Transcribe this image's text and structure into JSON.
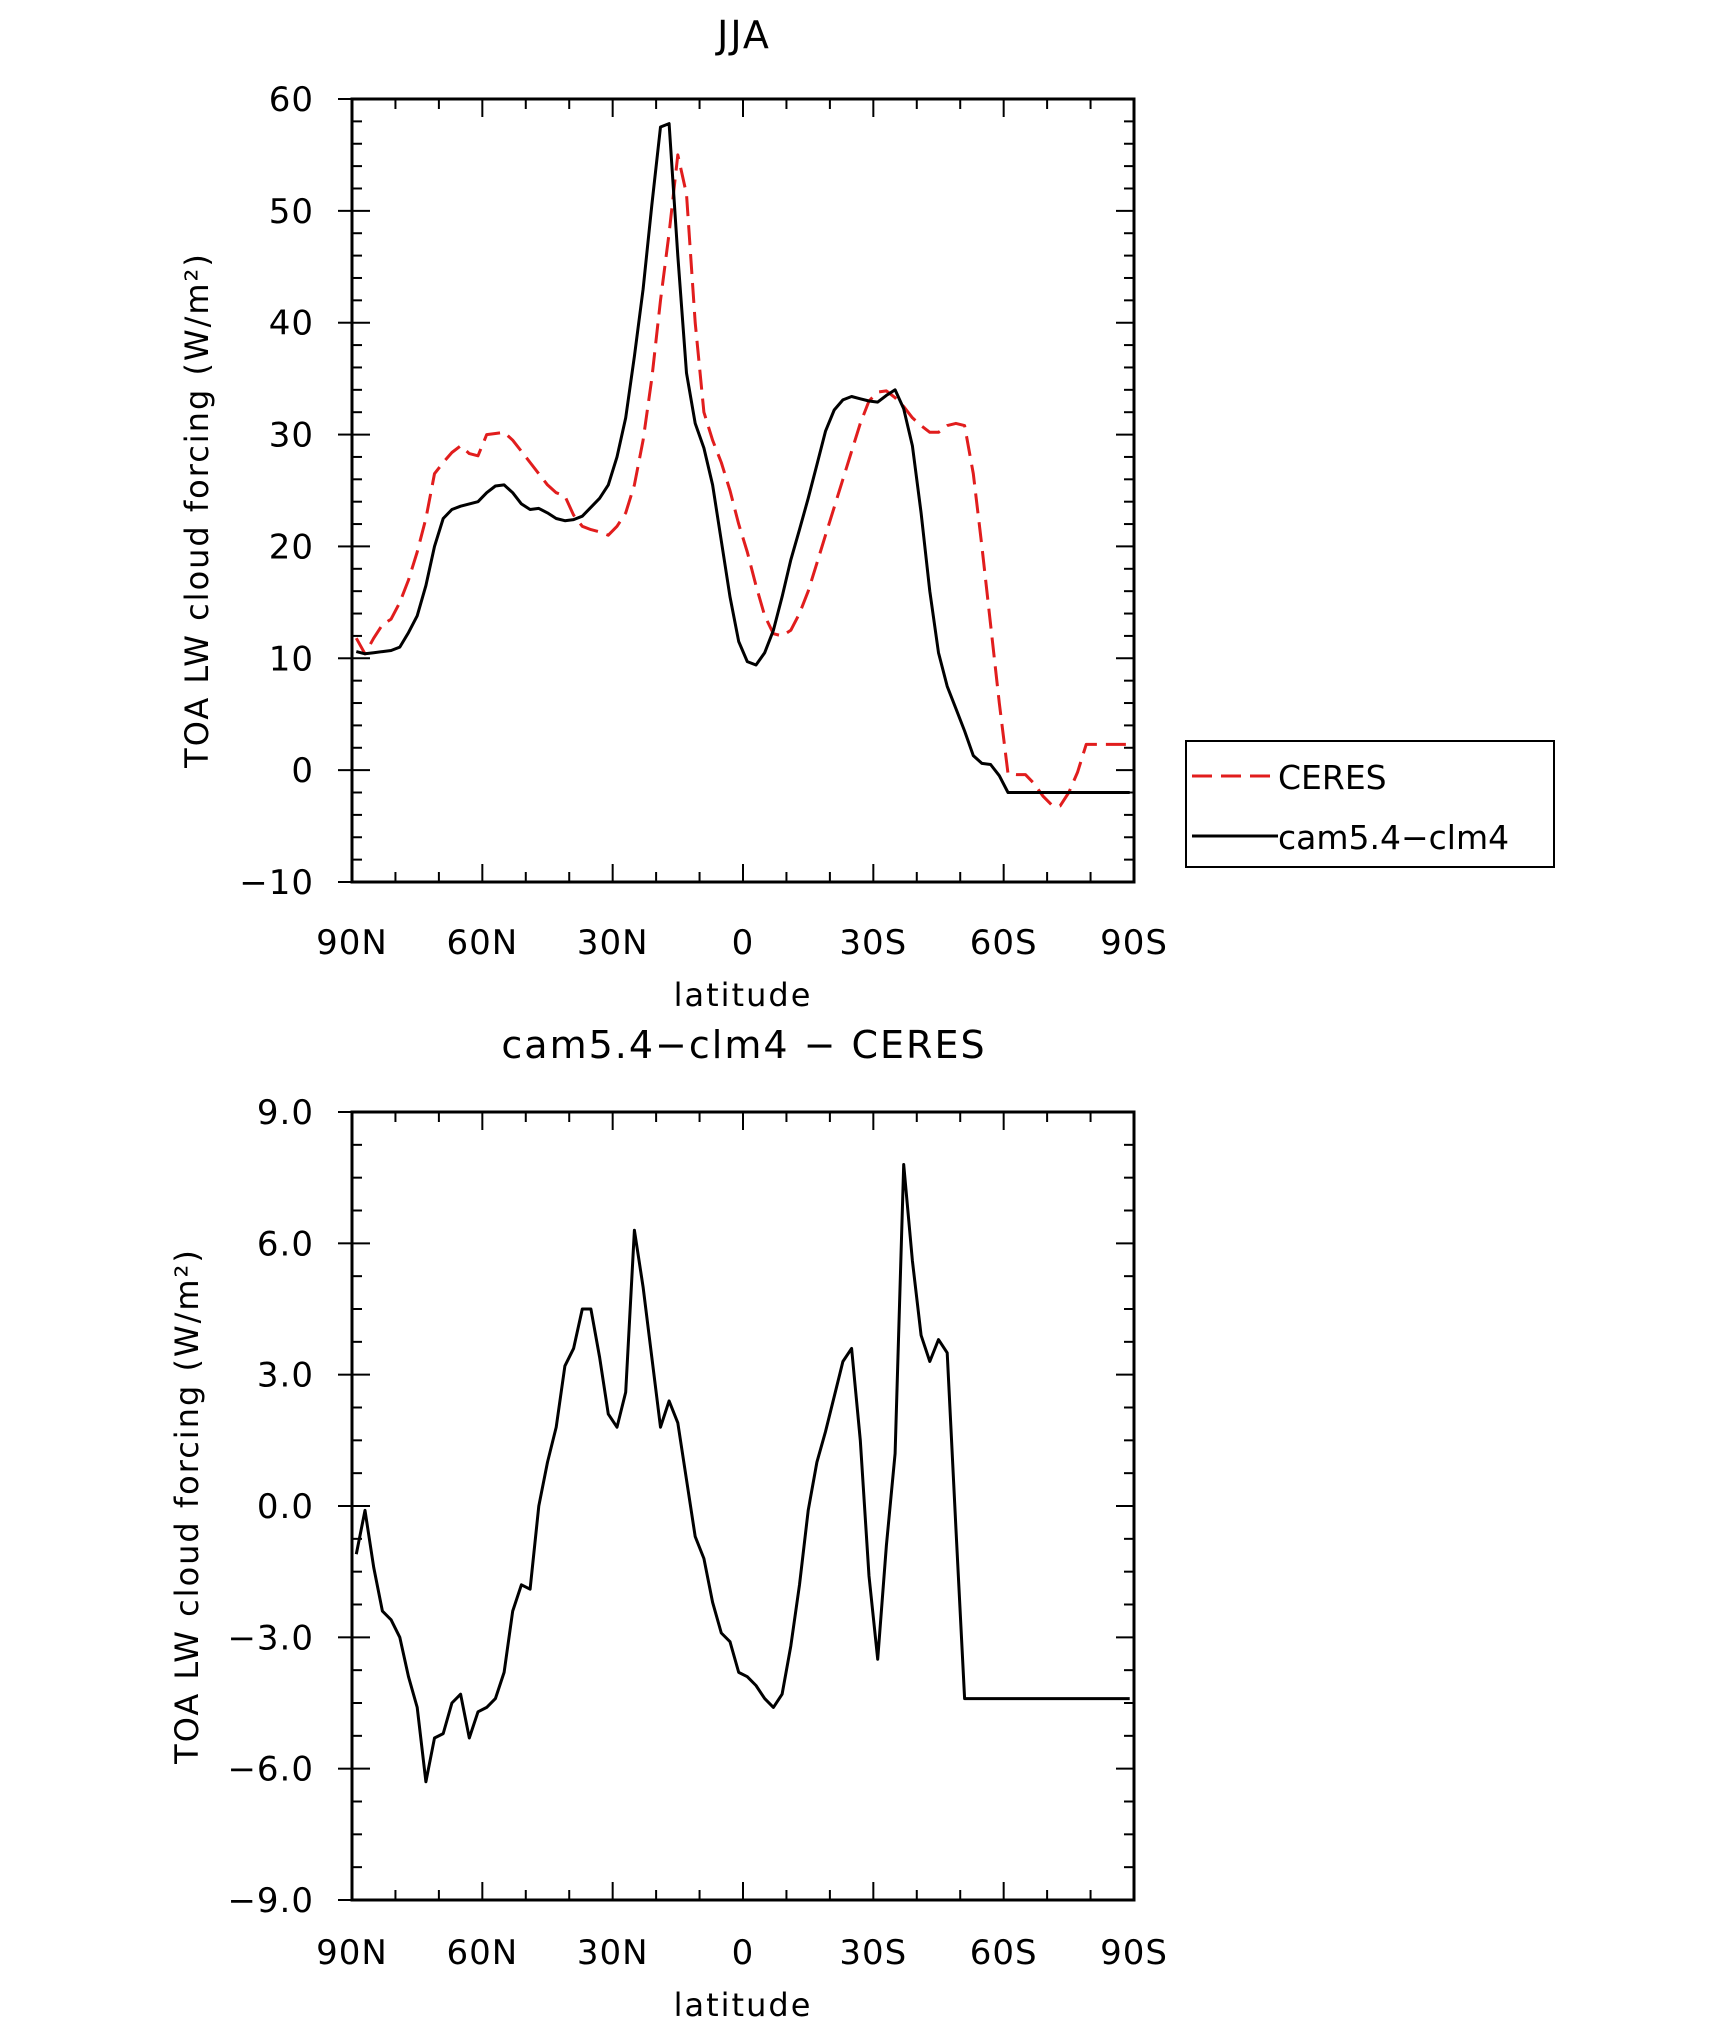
{
  "chart_data": [
    {
      "type": "line",
      "title": "JJA",
      "xlabel": "latitude",
      "ylabel": "TOA LW cloud forcing (W/m²)",
      "xlim": [
        90,
        -90
      ],
      "ylim": [
        -10,
        60
      ],
      "xticks": [
        90,
        60,
        30,
        0,
        -30,
        -60,
        -90
      ],
      "xtick_labels": [
        "90N",
        "60N",
        "30N",
        "0",
        "30S",
        "60S",
        "90S"
      ],
      "yticks": [
        -10,
        0,
        10,
        20,
        30,
        40,
        50,
        60
      ],
      "ytick_labels": [
        "−10",
        "0",
        "10",
        "20",
        "30",
        "40",
        "50",
        "60"
      ],
      "grid": false,
      "legend": "right, outside plot",
      "series": [
        {
          "name": "CERES",
          "color": "#e11d1d",
          "dash": "dashed",
          "x": [
            89,
            87,
            85,
            83,
            81,
            79,
            77,
            75,
            73,
            71,
            69,
            67,
            65,
            63,
            61,
            59,
            57,
            55,
            53,
            51,
            49,
            47,
            45,
            43,
            41,
            39,
            37,
            35,
            33,
            31,
            29,
            27,
            25,
            23,
            21,
            19,
            17,
            15,
            13,
            11,
            9,
            7,
            5,
            3,
            1,
            -1,
            -3,
            -5,
            -7,
            -9,
            -11,
            -13,
            -15,
            -17,
            -19,
            -21,
            -23,
            -25,
            -27,
            -29,
            -31,
            -33,
            -35,
            -37,
            -39,
            -41,
            -43,
            -45,
            -47,
            -49,
            -51,
            -53,
            -55,
            -57,
            -59,
            -61,
            -63,
            -65,
            -67,
            -69,
            -71,
            -73,
            -75,
            -77,
            -79,
            -81,
            -83,
            -85,
            -87,
            -89
          ],
          "y": [
            11.8,
            10.4,
            11.8,
            13.0,
            13.5,
            15.0,
            17.0,
            19.5,
            22.5,
            26.5,
            27.5,
            28.4,
            29.0,
            28.3,
            28.1,
            30.0,
            30.1,
            30.2,
            29.5,
            28.5,
            27.5,
            26.5,
            25.5,
            24.8,
            24.5,
            22.8,
            21.8,
            21.5,
            21.3,
            21.0,
            21.8,
            23.0,
            25.5,
            29.5,
            35.0,
            42.0,
            48.0,
            55.0,
            51.5,
            40.0,
            32.0,
            29.5,
            27.5,
            25.0,
            22.0,
            19.5,
            16.5,
            13.8,
            12.2,
            12.0,
            12.5,
            14.0,
            16.0,
            18.5,
            21.0,
            23.5,
            26.0,
            28.5,
            31.0,
            33.0,
            33.8,
            33.9,
            33.3,
            32.5,
            31.5,
            30.8,
            30.2,
            30.2,
            30.8,
            31.0,
            30.8,
            26.5,
            20.0,
            13.0,
            6.0,
            -0.3,
            -0.4,
            -0.4,
            -1.2,
            -2.3,
            -3.1,
            -3.2,
            -2.0,
            -0.2,
            2.3,
            2.3,
            2.3,
            2.3,
            2.3,
            2.3
          ],
          "x_extent_note": ""
        },
        {
          "name": "cam5.4−clm4",
          "color": "#000000",
          "dash": "solid",
          "x": [
            89,
            87,
            85,
            83,
            81,
            79,
            77,
            75,
            73,
            71,
            69,
            67,
            65,
            63,
            61,
            59,
            57,
            55,
            53,
            51,
            49,
            47,
            45,
            43,
            41,
            39,
            37,
            35,
            33,
            31,
            29,
            27,
            25,
            23,
            21,
            19,
            17,
            15,
            13,
            11,
            9,
            7,
            5,
            3,
            1,
            -1,
            -3,
            -5,
            -7,
            -9,
            -11,
            -13,
            -15,
            -17,
            -19,
            -21,
            -23,
            -25,
            -27,
            -29,
            -31,
            -33,
            -35,
            -37,
            -39,
            -41,
            -43,
            -45,
            -47,
            -49,
            -51,
            -53,
            -55,
            -57,
            -59,
            -61,
            -63,
            -65,
            -67,
            -69,
            -71,
            -73,
            -75,
            -77,
            -79,
            -81,
            -83,
            -85,
            -87,
            -89
          ],
          "y": [
            10.6,
            10.4,
            10.5,
            10.6,
            10.7,
            11.0,
            12.3,
            13.8,
            16.5,
            20.0,
            22.5,
            23.3,
            23.6,
            23.8,
            24.0,
            24.8,
            25.4,
            25.5,
            24.8,
            23.8,
            23.3,
            23.4,
            23.0,
            22.5,
            22.3,
            22.4,
            22.7,
            23.5,
            24.3,
            25.5,
            28.0,
            31.5,
            37.0,
            43.0,
            50.5,
            57.5,
            57.8,
            46.0,
            35.5,
            31.0,
            28.8,
            25.5,
            20.5,
            15.5,
            11.5,
            9.7,
            9.4,
            10.5,
            12.5,
            15.5,
            18.8,
            21.5,
            24.3,
            27.3,
            30.3,
            32.2,
            33.1,
            33.4,
            33.2,
            33.0,
            32.9,
            33.5,
            34.0,
            32.3,
            29.0,
            23.0,
            16.0,
            10.5,
            7.5,
            5.5,
            3.5,
            1.3,
            0.6,
            0.5,
            -0.5,
            -2.0,
            -2.0,
            -2.0,
            -2.0,
            -2.0,
            -2.0,
            -2.0,
            -2.0,
            -2.0,
            -2.0,
            -2.0,
            -2.0,
            -2.0,
            -2.0,
            -2.0
          ]
        }
      ]
    },
    {
      "type": "line",
      "title": "cam5.4−clm4 − CERES",
      "xlabel": "latitude",
      "ylabel": "TOA LW cloud forcing (W/m²)",
      "xlim": [
        90,
        -90
      ],
      "ylim": [
        -9,
        9
      ],
      "xticks": [
        90,
        60,
        30,
        0,
        -30,
        -60,
        -90
      ],
      "xtick_labels": [
        "90N",
        "60N",
        "30N",
        "0",
        "30S",
        "60S",
        "90S"
      ],
      "yticks": [
        -9,
        -6,
        -3,
        0,
        3,
        6,
        9
      ],
      "ytick_labels": [
        "−9.0",
        "−6.0",
        "−3.0",
        "0.0",
        "3.0",
        "6.0",
        "9.0"
      ],
      "grid": false,
      "series": [
        {
          "color": "#000000",
          "dash": "solid",
          "x": [
            89,
            87,
            85,
            83,
            81,
            79,
            77,
            75,
            73,
            71,
            69,
            67,
            65,
            63,
            61,
            59,
            57,
            55,
            53,
            51,
            49,
            47,
            45,
            43,
            41,
            39,
            37,
            35,
            33,
            31,
            29,
            27,
            25,
            23,
            21,
            19,
            17,
            15,
            13,
            11,
            9,
            7,
            5,
            3,
            1,
            -1,
            -3,
            -5,
            -7,
            -9,
            -11,
            -13,
            -15,
            -17,
            -19,
            -21,
            -23,
            -25,
            -27,
            -29,
            -31,
            -33,
            -35,
            -37,
            -39,
            -41,
            -43,
            -45,
            -47,
            -49,
            -51,
            -53,
            -55,
            -57,
            -59,
            -61,
            -63,
            -65,
            -67,
            -69,
            -71,
            -73,
            -75,
            -77,
            -79,
            -81,
            -83,
            -85,
            -87,
            -89
          ],
          "y": [
            -1.1,
            -0.1,
            -1.4,
            -2.4,
            -2.6,
            -3.0,
            -3.9,
            -4.6,
            -6.3,
            -5.3,
            -5.2,
            -4.5,
            -4.3,
            -5.3,
            -4.7,
            -4.6,
            -4.4,
            -3.8,
            -2.4,
            -1.8,
            -1.9,
            0.0,
            1.0,
            1.8,
            3.2,
            3.6,
            4.5,
            4.5,
            3.4,
            2.1,
            1.8,
            2.6,
            6.3,
            5.0,
            3.4,
            1.8,
            2.4,
            1.9,
            0.6,
            -0.7,
            -1.2,
            -2.2,
            -2.9,
            -3.1,
            -3.8,
            -3.9,
            -4.1,
            -4.4,
            -4.6,
            -4.3,
            -3.2,
            -1.8,
            -0.1,
            1.0,
            1.7,
            2.5,
            3.3,
            3.6,
            1.5,
            -1.6,
            -3.5,
            -0.9,
            1.2,
            7.8,
            5.6,
            3.9,
            3.3,
            3.8,
            3.5,
            -0.5,
            -4.4,
            -4.4,
            -4.4,
            -4.4,
            -4.4,
            -4.4,
            -4.4,
            -4.4,
            -4.4,
            -4.4,
            -4.4,
            -4.4,
            -4.4,
            -4.4,
            -4.4,
            -4.4,
            -4.4,
            -4.4,
            -4.4,
            -4.4
          ]
        }
      ]
    }
  ]
}
